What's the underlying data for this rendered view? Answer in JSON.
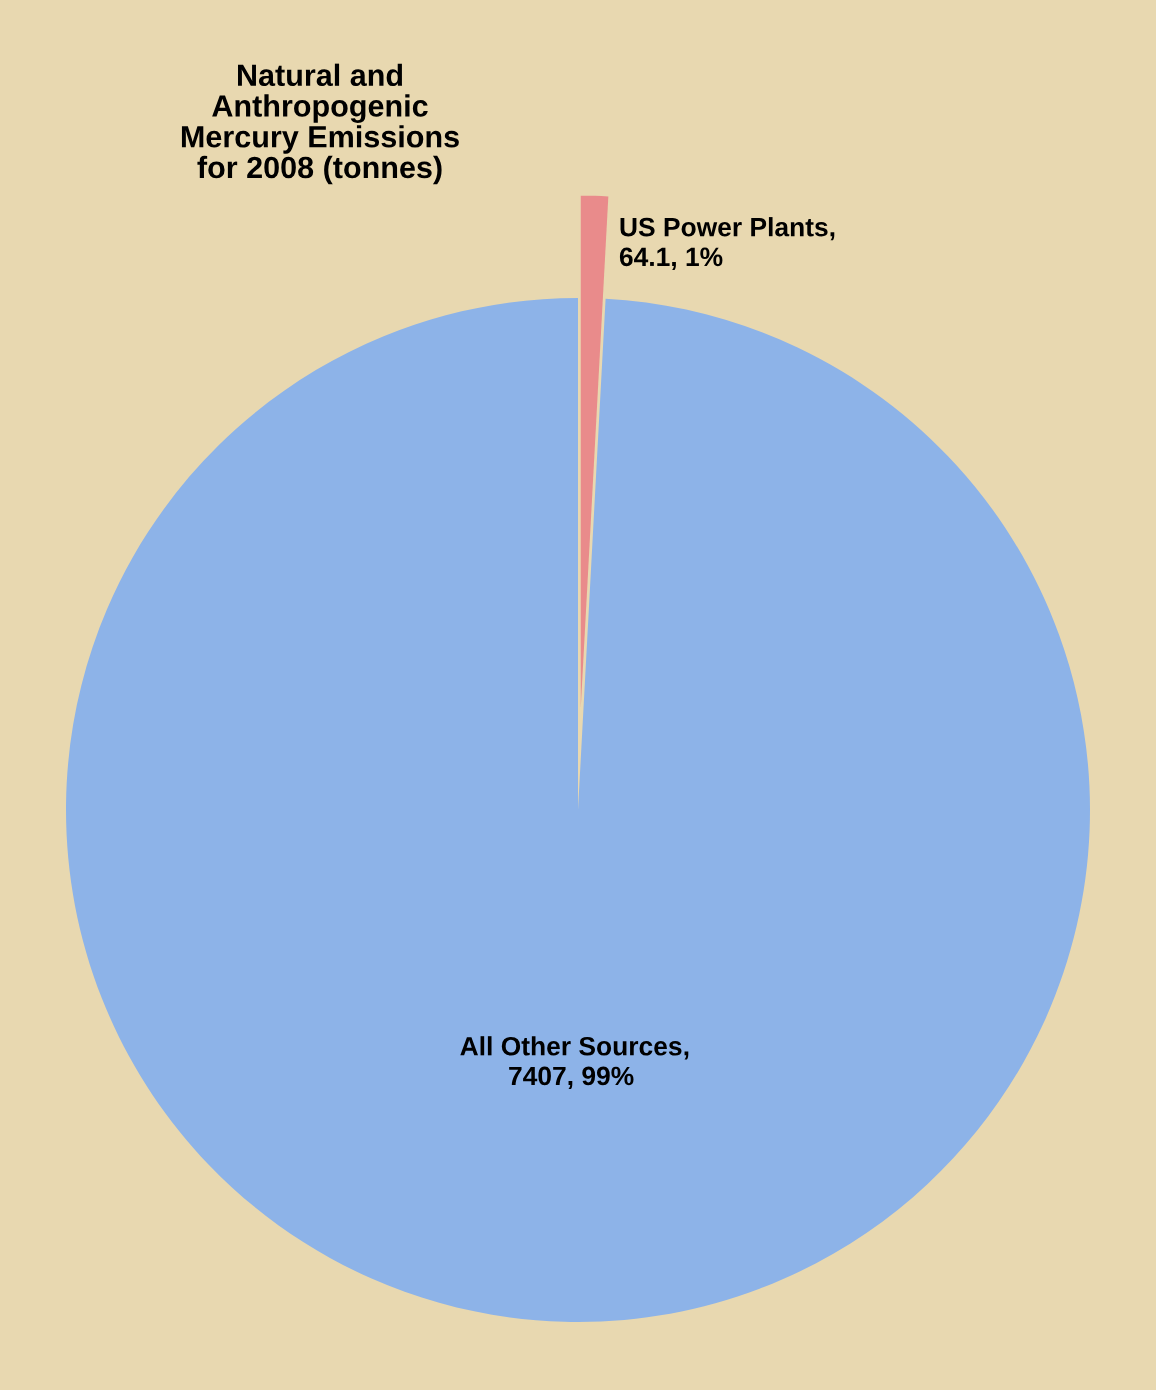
{
  "chart_data": {
    "type": "pie",
    "title": "Natural and\nAnthropogenic\nMercury Emissions\nfor 2008 (tonnes)",
    "categories": [
      "US Power Plants",
      "All Other Sources"
    ],
    "values": [
      64.1,
      7407
    ],
    "value_labels": [
      "64.1, 1%",
      "7407, 99%"
    ],
    "annotations": [
      ",",
      ","
    ],
    "colors": [
      "#e98b8b",
      "#8db3e8"
    ],
    "legend": false
  }
}
